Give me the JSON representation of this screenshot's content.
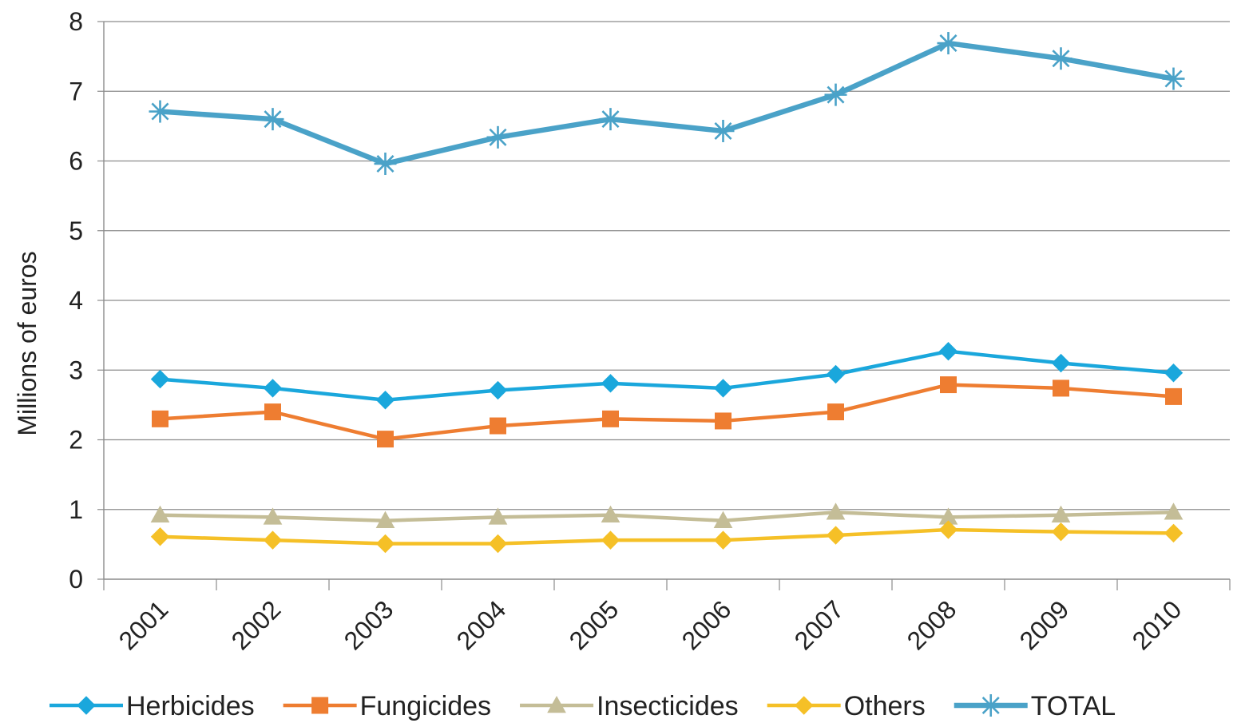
{
  "chart_data": {
    "type": "line",
    "title": "",
    "xlabel": "",
    "ylabel": "Millions of euros",
    "ylim": [
      0,
      8
    ],
    "yticks": [
      "0",
      "1",
      "2",
      "3",
      "4",
      "5",
      "6",
      "7",
      "8"
    ],
    "categories": [
      "2001",
      "2002",
      "2003",
      "2004",
      "2005",
      "2006",
      "2007",
      "2008",
      "2009",
      "2010"
    ],
    "grid": true,
    "legend_position": "bottom",
    "series": [
      {
        "name": "Herbicides",
        "color": "#1aa7dc",
        "marker": "diamond",
        "values": [
          2.87,
          2.74,
          2.57,
          2.71,
          2.81,
          2.74,
          2.94,
          3.27,
          3.1,
          2.96
        ]
      },
      {
        "name": "Fungicides",
        "color": "#ee7d31",
        "marker": "square",
        "values": [
          2.3,
          2.4,
          2.01,
          2.2,
          2.3,
          2.27,
          2.4,
          2.79,
          2.74,
          2.62
        ]
      },
      {
        "name": "Insecticides",
        "color": "#c4bd97",
        "marker": "triangle",
        "values": [
          0.92,
          0.89,
          0.84,
          0.89,
          0.92,
          0.84,
          0.96,
          0.89,
          0.92,
          0.96
        ]
      },
      {
        "name": "Others",
        "color": "#f5c027",
        "marker": "diamond",
        "values": [
          0.61,
          0.56,
          0.51,
          0.51,
          0.56,
          0.56,
          0.63,
          0.71,
          0.68,
          0.66
        ]
      },
      {
        "name": "TOTAL",
        "color": "#4aa2c8",
        "marker": "asterisk",
        "values": [
          6.71,
          6.6,
          5.96,
          6.34,
          6.6,
          6.43,
          6.95,
          7.69,
          7.47,
          7.18
        ]
      }
    ]
  }
}
